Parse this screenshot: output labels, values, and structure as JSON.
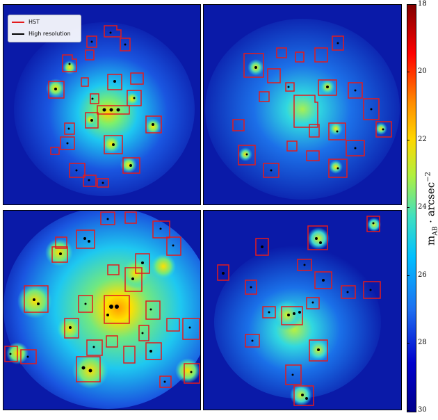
{
  "legend": {
    "entries": [
      {
        "label": "HST",
        "color": "#e41a1c"
      },
      {
        "label": "High resolution",
        "color": "#000000"
      }
    ]
  },
  "colorbar": {
    "label_main": "m",
    "label_sub": "AB",
    "label_rest": " · arcsec",
    "label_exp": "−2",
    "ticks": [
      "18",
      "20",
      "22",
      "24",
      "26",
      "28",
      "30"
    ],
    "range": [
      18,
      30
    ],
    "colormap": "jet"
  },
  "panels": [
    {
      "name": "top-left-cluster"
    },
    {
      "name": "top-right-cluster"
    },
    {
      "name": "bottom-left-cluster"
    },
    {
      "name": "bottom-right-cluster"
    }
  ]
}
